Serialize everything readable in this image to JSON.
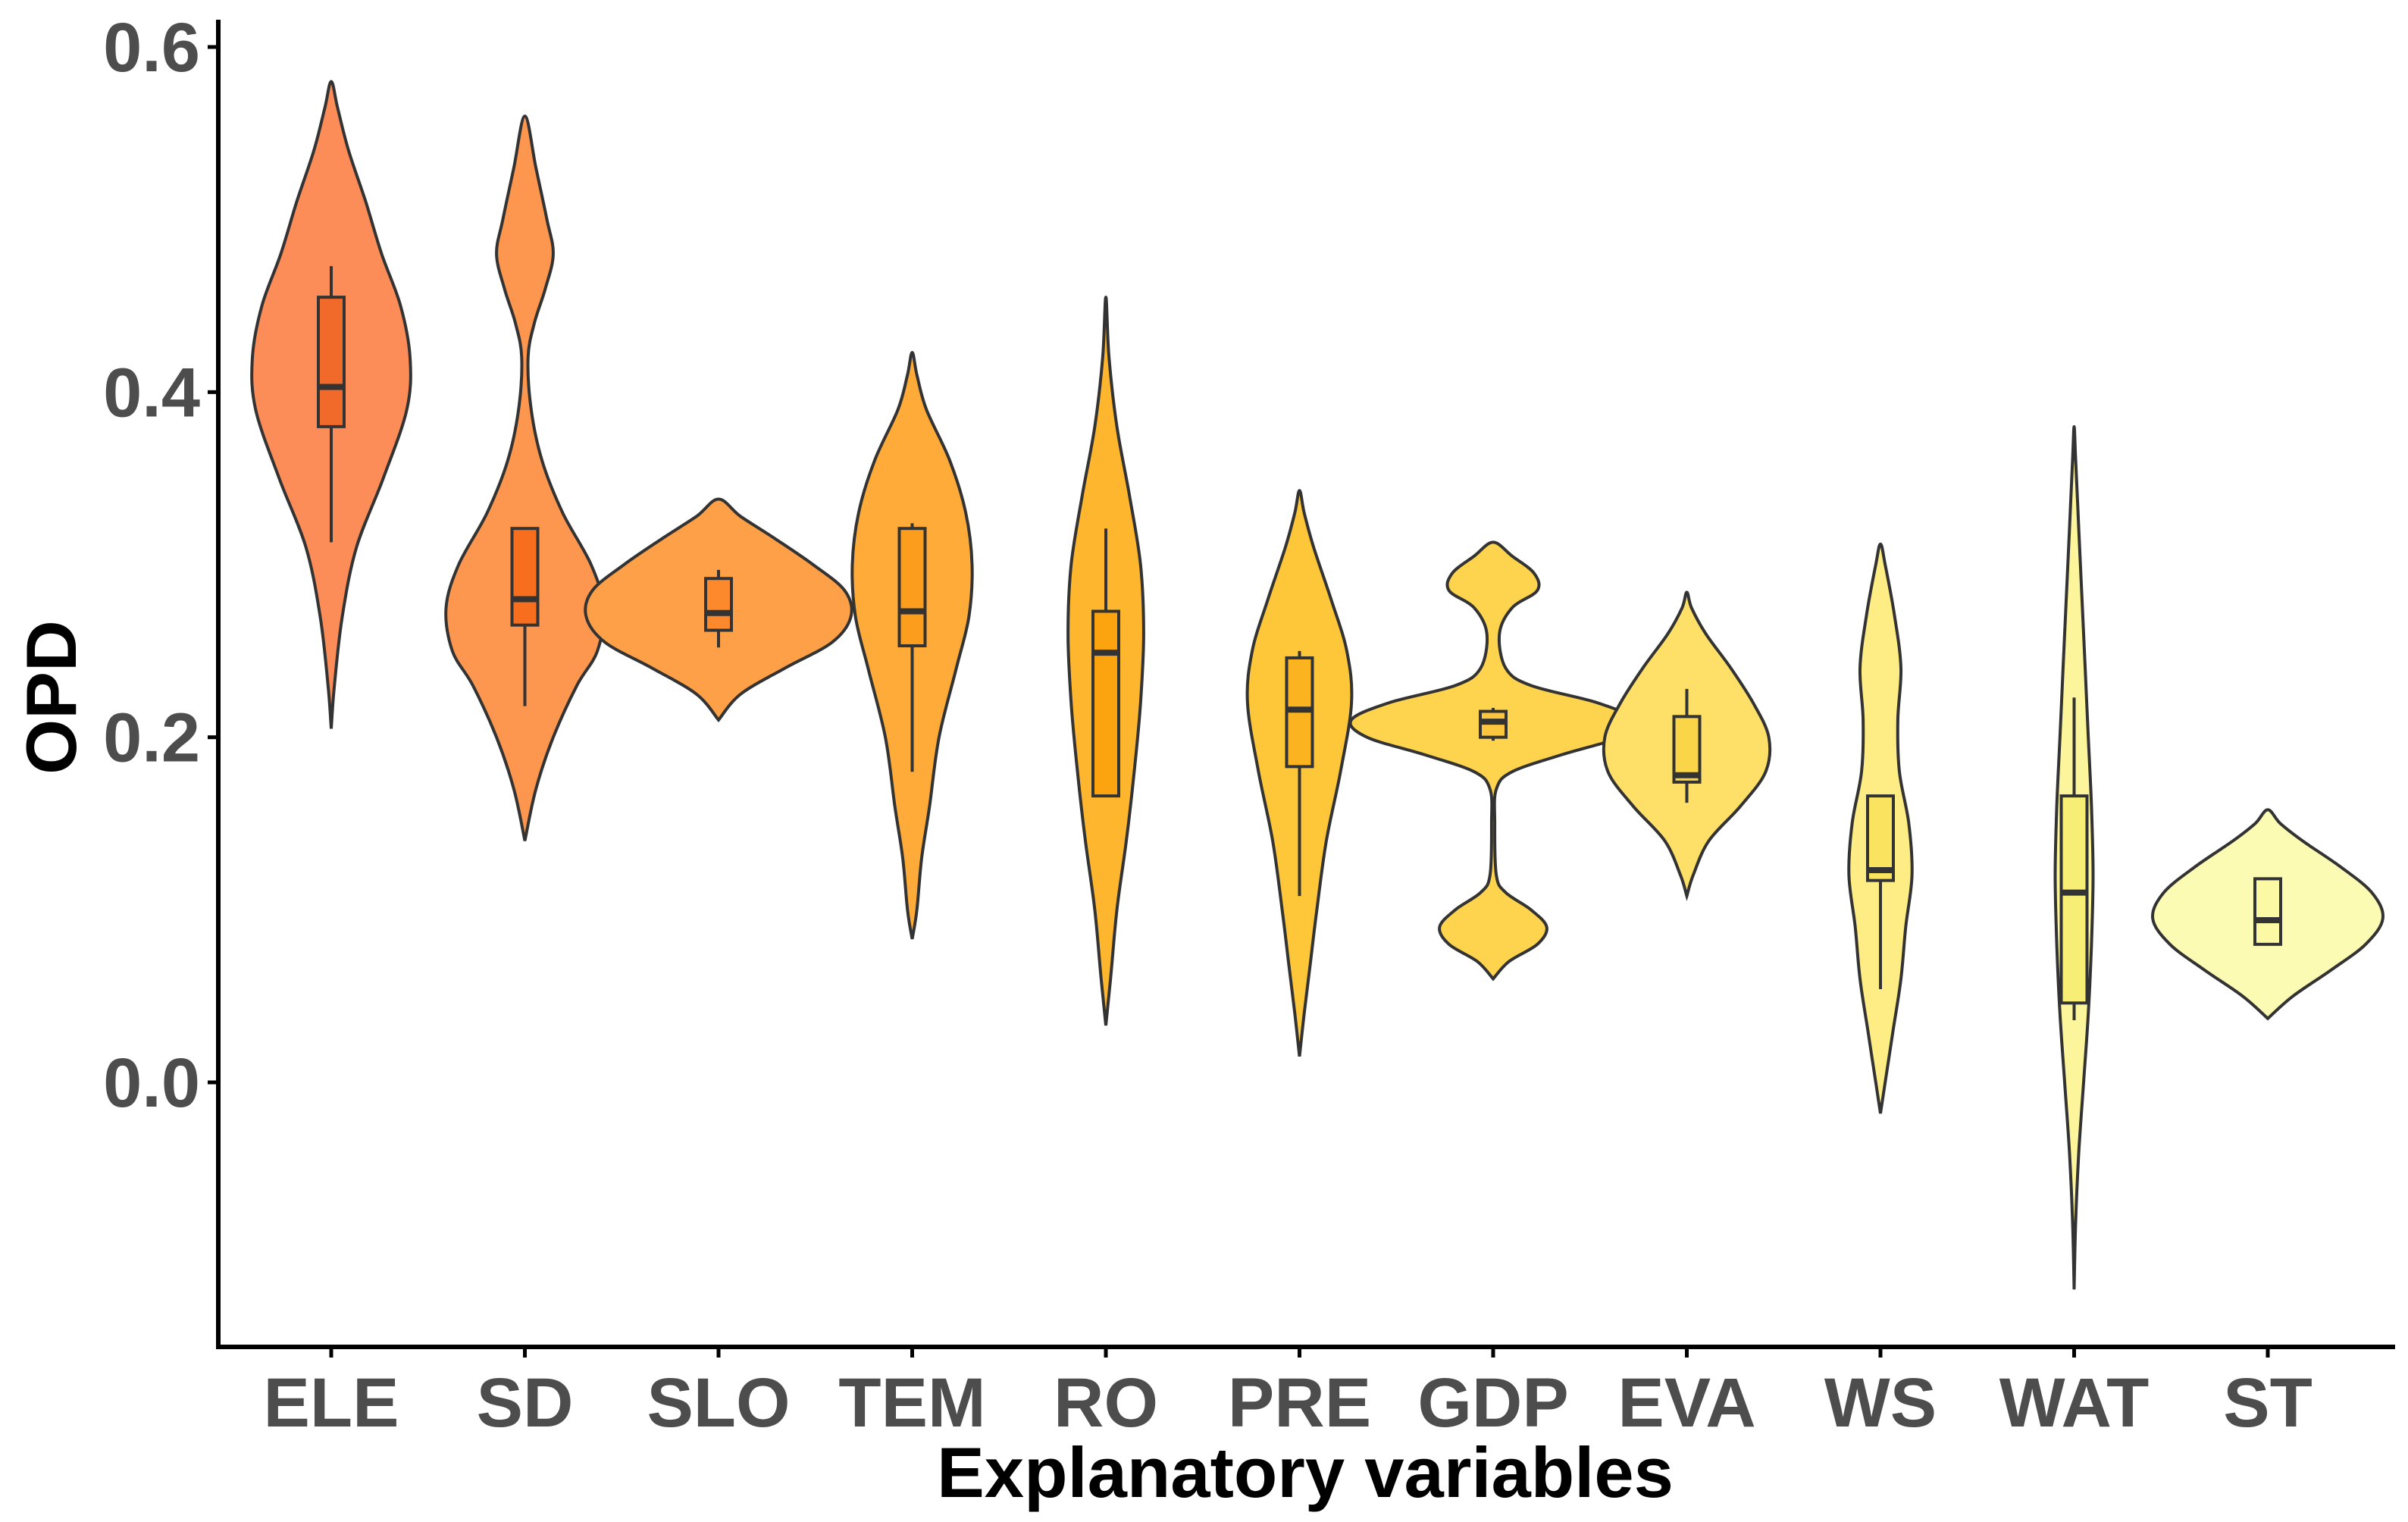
{
  "chart_data": {
    "type": "violin",
    "title": "",
    "xlabel": "Explanatory variables",
    "ylabel": "OPD",
    "ylim": [
      -0.155,
      0.615
    ],
    "yticks": [
      "0.0",
      "0.2",
      "0.4",
      "0.6"
    ],
    "ytick_values": [
      0.0,
      0.2,
      0.4,
      0.6
    ],
    "grid": false,
    "categories": [
      "ELE",
      "SD",
      "SLO",
      "TEM",
      "RO",
      "PRE",
      "GDP",
      "EVA",
      "WS",
      "WAT",
      "ST"
    ],
    "colors": [
      "#fc8d59",
      "#fd9750",
      "#fea048",
      "#feab3a",
      "#feb62e",
      "#fec739",
      "#fed44e",
      "#fee068",
      "#feec84",
      "#fdf59b",
      "#fcfbb4"
    ],
    "box_colors": [
      "#f26a2a",
      "#f76f1e",
      "#fc8a2c",
      "#fd9d1e",
      "#fca410",
      "#fbb41f",
      "#fbc53d",
      "#fbd548",
      "#f9e35f",
      "#f7ee76",
      "#fbf9a4"
    ],
    "violins": [
      {
        "name": "ELE",
        "min": 0.205,
        "max": 0.58,
        "width": [
          [
            0.205,
            0.0
          ],
          [
            0.23,
            0.02
          ],
          [
            0.27,
            0.07
          ],
          [
            0.31,
            0.16
          ],
          [
            0.35,
            0.33
          ],
          [
            0.39,
            0.48
          ],
          [
            0.42,
            0.5
          ],
          [
            0.45,
            0.44
          ],
          [
            0.48,
            0.32
          ],
          [
            0.51,
            0.22
          ],
          [
            0.54,
            0.11
          ],
          [
            0.565,
            0.04
          ],
          [
            0.58,
            0.0
          ]
        ],
        "q1": 0.38,
        "median": 0.403,
        "q3": 0.455,
        "whisker_low": 0.313,
        "whisker_high": 0.473
      },
      {
        "name": "SD",
        "min": 0.14,
        "max": 0.56,
        "width": [
          [
            0.14,
            0.0
          ],
          [
            0.17,
            0.07
          ],
          [
            0.2,
            0.18
          ],
          [
            0.23,
            0.33
          ],
          [
            0.25,
            0.46
          ],
          [
            0.275,
            0.5
          ],
          [
            0.3,
            0.42
          ],
          [
            0.33,
            0.24
          ],
          [
            0.36,
            0.11
          ],
          [
            0.39,
            0.04
          ],
          [
            0.42,
            0.02
          ],
          [
            0.44,
            0.06
          ],
          [
            0.46,
            0.13
          ],
          [
            0.48,
            0.18
          ],
          [
            0.5,
            0.14
          ],
          [
            0.53,
            0.07
          ],
          [
            0.56,
            0.0
          ]
        ],
        "q1": 0.265,
        "median": 0.28,
        "q3": 0.321,
        "whisker_low": 0.218,
        "whisker_high": 0.321
      },
      {
        "name": "SLO",
        "min": 0.21,
        "max": 0.338,
        "width": [
          [
            0.21,
            0.0
          ],
          [
            0.225,
            0.14
          ],
          [
            0.24,
            0.42
          ],
          [
            0.255,
            0.72
          ],
          [
            0.27,
            0.84
          ],
          [
            0.285,
            0.8
          ],
          [
            0.3,
            0.6
          ],
          [
            0.315,
            0.36
          ],
          [
            0.328,
            0.14
          ],
          [
            0.338,
            0.0
          ]
        ],
        "q1": 0.262,
        "median": 0.272,
        "q3": 0.292,
        "whisker_low": 0.252,
        "whisker_high": 0.297
      },
      {
        "name": "TEM",
        "min": 0.083,
        "max": 0.423,
        "width": [
          [
            0.083,
            0.0
          ],
          [
            0.1,
            0.03
          ],
          [
            0.13,
            0.06
          ],
          [
            0.16,
            0.11
          ],
          [
            0.2,
            0.17
          ],
          [
            0.24,
            0.28
          ],
          [
            0.27,
            0.36
          ],
          [
            0.3,
            0.38
          ],
          [
            0.33,
            0.34
          ],
          [
            0.36,
            0.24
          ],
          [
            0.39,
            0.09
          ],
          [
            0.41,
            0.03
          ],
          [
            0.423,
            0.0
          ]
        ],
        "q1": 0.253,
        "median": 0.273,
        "q3": 0.321,
        "whisker_low": 0.18,
        "whisker_high": 0.324
      },
      {
        "name": "RO",
        "min": 0.033,
        "max": 0.455,
        "width": [
          [
            0.033,
            0.0
          ],
          [
            0.06,
            0.03
          ],
          [
            0.1,
            0.07
          ],
          [
            0.14,
            0.13
          ],
          [
            0.18,
            0.18
          ],
          [
            0.22,
            0.22
          ],
          [
            0.26,
            0.24
          ],
          [
            0.3,
            0.22
          ],
          [
            0.34,
            0.15
          ],
          [
            0.38,
            0.07
          ],
          [
            0.42,
            0.02
          ],
          [
            0.455,
            0.0
          ]
        ],
        "q1": 0.166,
        "median": 0.249,
        "q3": 0.273,
        "whisker_low": 0.166,
        "whisker_high": 0.321
      },
      {
        "name": "PRE",
        "min": 0.015,
        "max": 0.343,
        "width": [
          [
            0.015,
            0.0
          ],
          [
            0.04,
            0.03
          ],
          [
            0.07,
            0.07
          ],
          [
            0.1,
            0.11
          ],
          [
            0.14,
            0.17
          ],
          [
            0.18,
            0.26
          ],
          [
            0.22,
            0.33
          ],
          [
            0.25,
            0.3
          ],
          [
            0.28,
            0.2
          ],
          [
            0.31,
            0.09
          ],
          [
            0.33,
            0.03
          ],
          [
            0.343,
            0.0
          ]
        ],
        "q1": 0.183,
        "median": 0.216,
        "q3": 0.246,
        "whisker_low": 0.108,
        "whisker_high": 0.25
      },
      {
        "name": "GDP",
        "min": 0.06,
        "max": 0.313,
        "width": [
          [
            0.06,
            0.0
          ],
          [
            0.07,
            0.1
          ],
          [
            0.08,
            0.28
          ],
          [
            0.09,
            0.34
          ],
          [
            0.1,
            0.24
          ],
          [
            0.11,
            0.08
          ],
          [
            0.12,
            0.02
          ],
          [
            0.15,
            0.01
          ],
          [
            0.17,
            0.02
          ],
          [
            0.18,
            0.12
          ],
          [
            0.19,
            0.44
          ],
          [
            0.2,
            0.8
          ],
          [
            0.21,
            0.9
          ],
          [
            0.22,
            0.66
          ],
          [
            0.23,
            0.24
          ],
          [
            0.24,
            0.08
          ],
          [
            0.26,
            0.04
          ],
          [
            0.275,
            0.12
          ],
          [
            0.285,
            0.28
          ],
          [
            0.295,
            0.26
          ],
          [
            0.305,
            0.12
          ],
          [
            0.313,
            0.0
          ]
        ],
        "q1": 0.2,
        "median": 0.209,
        "q3": 0.215,
        "whisker_low": 0.198,
        "whisker_high": 0.217
      },
      {
        "name": "EVA",
        "min": 0.108,
        "max": 0.284,
        "width": [
          [
            0.108,
            0.0
          ],
          [
            0.12,
            0.04
          ],
          [
            0.14,
            0.14
          ],
          [
            0.16,
            0.34
          ],
          [
            0.18,
            0.5
          ],
          [
            0.2,
            0.52
          ],
          [
            0.22,
            0.42
          ],
          [
            0.24,
            0.28
          ],
          [
            0.26,
            0.12
          ],
          [
            0.275,
            0.03
          ],
          [
            0.284,
            0.0
          ]
        ],
        "q1": 0.174,
        "median": 0.178,
        "q3": 0.212,
        "whisker_low": 0.162,
        "whisker_high": 0.228
      },
      {
        "name": "WS",
        "min": -0.018,
        "max": 0.312,
        "width": [
          [
            -0.018,
            0.0
          ],
          [
            0.0,
            0.03
          ],
          [
            0.03,
            0.08
          ],
          [
            0.06,
            0.13
          ],
          [
            0.09,
            0.16
          ],
          [
            0.12,
            0.2
          ],
          [
            0.15,
            0.18
          ],
          [
            0.18,
            0.12
          ],
          [
            0.21,
            0.11
          ],
          [
            0.24,
            0.13
          ],
          [
            0.27,
            0.09
          ],
          [
            0.3,
            0.03
          ],
          [
            0.312,
            0.0
          ]
        ],
        "q1": 0.117,
        "median": 0.123,
        "q3": 0.166,
        "whisker_low": 0.054,
        "whisker_high": 0.166
      },
      {
        "name": "WAT",
        "min": -0.12,
        "max": 0.38,
        "width": [
          [
            -0.12,
            0.0
          ],
          [
            -0.08,
            0.01
          ],
          [
            -0.04,
            0.03
          ],
          [
            0.0,
            0.06
          ],
          [
            0.04,
            0.09
          ],
          [
            0.08,
            0.11
          ],
          [
            0.12,
            0.12
          ],
          [
            0.16,
            0.11
          ],
          [
            0.2,
            0.09
          ],
          [
            0.24,
            0.07
          ],
          [
            0.28,
            0.05
          ],
          [
            0.32,
            0.03
          ],
          [
            0.36,
            0.01
          ],
          [
            0.38,
            0.0
          ]
        ],
        "q1": 0.046,
        "median": 0.11,
        "q3": 0.166,
        "whisker_low": 0.036,
        "whisker_high": 0.223
      },
      {
        "name": "ST",
        "min": 0.037,
        "max": 0.158,
        "width": [
          [
            0.037,
            0.0
          ],
          [
            0.05,
            0.16
          ],
          [
            0.065,
            0.4
          ],
          [
            0.08,
            0.62
          ],
          [
            0.095,
            0.73
          ],
          [
            0.11,
            0.66
          ],
          [
            0.125,
            0.46
          ],
          [
            0.14,
            0.22
          ],
          [
            0.15,
            0.08
          ],
          [
            0.158,
            0.0
          ]
        ],
        "q1": 0.08,
        "median": 0.094,
        "q3": 0.118,
        "whisker_low": 0.08,
        "whisker_high": 0.118
      }
    ]
  }
}
